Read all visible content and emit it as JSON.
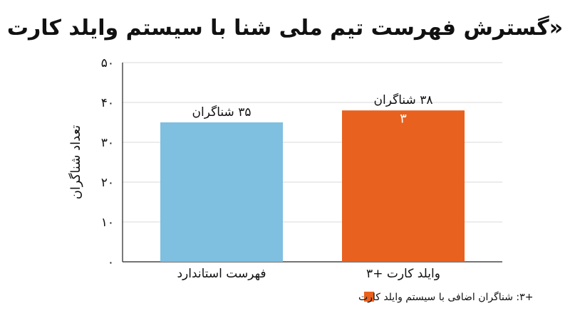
{
  "chart_data": {
    "type": "bar",
    "title": "«گسترش فهرست تیم ملی شنا با سیستم وایلد کارت",
    "ylabel": "تعداد شناگران",
    "xlabel": "",
    "ylim": [
      0,
      50
    ],
    "yticks": [
      0,
      10,
      20,
      30,
      40,
      50
    ],
    "ytick_labels": [
      "۰",
      "۱۰",
      "۲۰",
      "۳۰",
      "۴۰",
      "۵۰"
    ],
    "grid": true,
    "categories": [
      "فهرست استاندارد",
      "وایلد کارت +۳"
    ],
    "values": [
      35,
      38
    ],
    "data_labels": [
      "۳۵ شناگران",
      "۳۸ شناگران"
    ],
    "stack_addition": {
      "category_index": 1,
      "value": 3,
      "label": "۳"
    },
    "colors": {
      "standard": "#7FBFDF",
      "wildcard": "#E8611E",
      "grid": "#d9d9d9",
      "axis": "#222222"
    },
    "legend": {
      "position": "bottom-center",
      "entries": [
        {
          "label": "+۳: شناگران اضافی با سیستم وایلد کارت",
          "color": "#E8611E"
        }
      ]
    }
  }
}
